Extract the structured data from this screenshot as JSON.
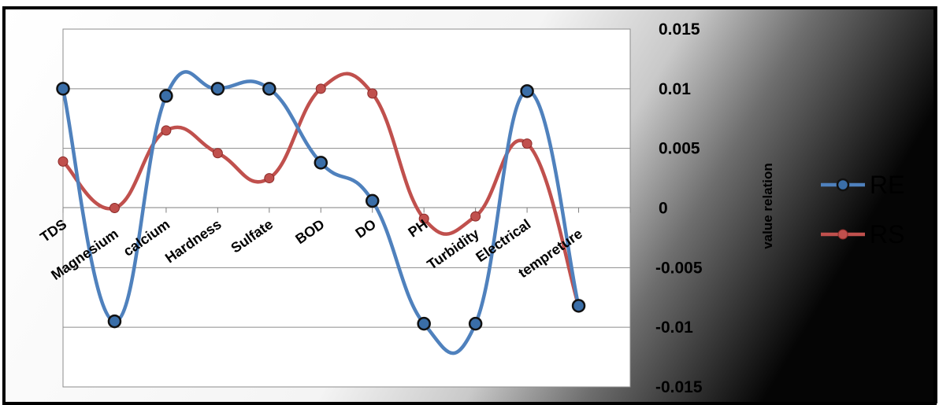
{
  "chart_data": {
    "type": "line",
    "categories": [
      "TDS",
      "Magnesium",
      "calcium",
      "Hardness",
      "Sulfate",
      "BOD",
      "DO",
      "PH",
      "Turbidity",
      "Electrical",
      "tempreture"
    ],
    "series": [
      {
        "name": "RE",
        "color": "#4f81bd",
        "marker": "dark-circle",
        "values": [
          0.01,
          -0.0095,
          0.0094,
          0.01,
          0.01,
          0.0038,
          0.0006,
          -0.0097,
          -0.0097,
          0.0098,
          -0.0082
        ]
      },
      {
        "name": "RS",
        "color": "#c0504d",
        "marker": "red-dot",
        "values": [
          0.0039,
          0.0,
          0.0065,
          0.0046,
          0.0025,
          0.01,
          0.0096,
          -0.0009,
          -0.0007,
          0.0054,
          -0.0082
        ]
      }
    ],
    "ylabel": "value relation",
    "ylim": [
      -0.015,
      0.015
    ],
    "yticks": [
      "0.015",
      "0.01",
      "0.005",
      "0",
      "-0.005",
      "-0.01",
      "-0.015"
    ],
    "grid": true,
    "smooth": true,
    "legend_position": "right"
  }
}
